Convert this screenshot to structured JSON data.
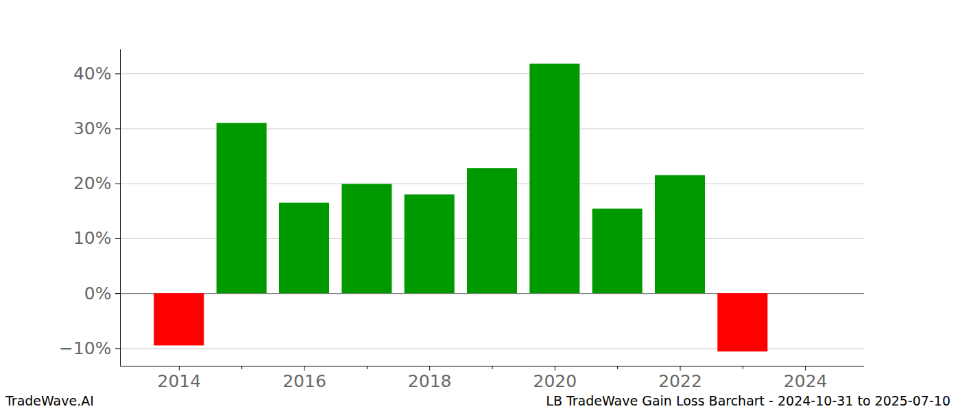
{
  "chart_data": {
    "type": "bar",
    "title": "LB TradeWave Gain Loss Barchart - 2024-10-31 to 2025-07-10",
    "source": "TradeWave.AI",
    "x": [
      2014,
      2015,
      2016,
      2017,
      2018,
      2019,
      2020,
      2021,
      2022,
      2023,
      2024
    ],
    "values": [
      -9.5,
      31.0,
      16.5,
      19.9,
      18.0,
      22.8,
      41.8,
      15.4,
      21.5,
      -10.6,
      0
    ],
    "colors": [
      "#ff0000",
      "#009900",
      "#009900",
      "#009900",
      "#009900",
      "#009900",
      "#009900",
      "#009900",
      "#009900",
      "#ff0000",
      "#009900"
    ],
    "xlim": [
      2013.06,
      2024.94
    ],
    "xticks": [
      2014,
      2016,
      2018,
      2020,
      2022,
      2024
    ],
    "ylim": [
      -13.2,
      44.4
    ],
    "yticks": [
      {
        "value": -10,
        "label": "−10%"
      },
      {
        "value": 0,
        "label": "0%"
      },
      {
        "value": 10,
        "label": "10%"
      },
      {
        "value": 20,
        "label": "20%"
      },
      {
        "value": 30,
        "label": "30%"
      },
      {
        "value": 40,
        "label": "40%"
      }
    ],
    "grid": true
  }
}
